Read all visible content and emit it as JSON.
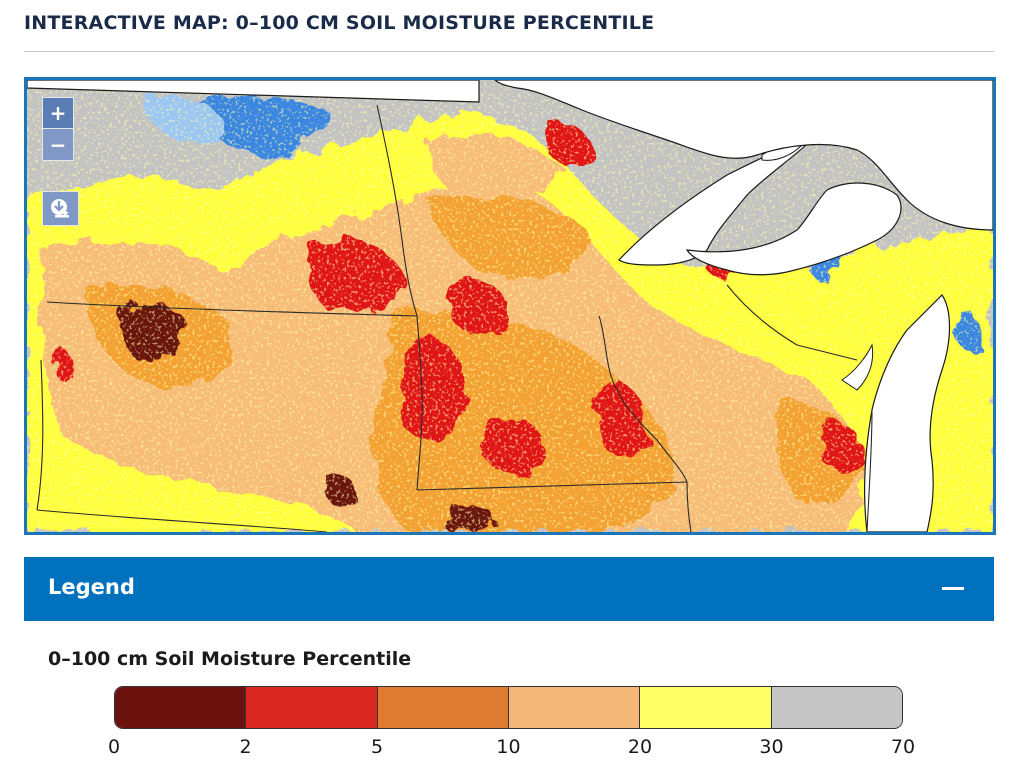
{
  "page": {
    "title": "INTERACTIVE MAP: 0–100 CM SOIL MOISTURE PERCENTILE"
  },
  "map": {
    "zoom_in_label": "+",
    "zoom_out_label": "−",
    "download_icon": "download-icon",
    "water_color": "#ffffff",
    "no_data_color": "#c3c3c3"
  },
  "legend": {
    "header": "Legend",
    "subtitle": "0–100 cm Soil Moisture Percentile",
    "collapse_icon": "minus-icon",
    "classes": [
      {
        "color": "#6b120f"
      },
      {
        "color": "#d9281f"
      },
      {
        "color": "#de7b31"
      },
      {
        "color": "#f4b777"
      },
      {
        "color": "#ffff66"
      },
      {
        "color": "#c6c6c6"
      }
    ],
    "ticks": [
      "0",
      "2",
      "5",
      "10",
      "20",
      "30",
      "70"
    ]
  }
}
